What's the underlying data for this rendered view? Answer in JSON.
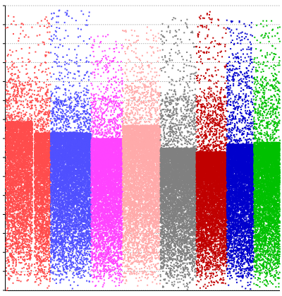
{
  "chart_data": {
    "type": "scatter",
    "title": "",
    "xlabel": "",
    "ylabel": "",
    "grid": "horizontal-dotted",
    "legend": "none",
    "ylim": [
      0,
      15
    ],
    "gridlines_y": [
      0,
      1,
      2,
      3,
      4,
      5,
      6,
      7,
      8,
      9,
      10,
      11,
      12,
      13,
      14,
      15
    ],
    "series": [
      {
        "color": "#ff4d4d",
        "x_range": [
          0.0,
          0.3
        ],
        "dense_top": 8.9,
        "cluster_top": 10.9,
        "sparse_top": 14.5,
        "dense_count": 4500,
        "cluster_count": 500,
        "sparse_count": 90
      },
      {
        "color": "#ff4d4d",
        "x_range": [
          0.32,
          0.5
        ],
        "dense_top": 8.3,
        "cluster_top": 10.6,
        "sparse_top": 14.4,
        "dense_count": 3000,
        "cluster_count": 350,
        "sparse_count": 60
      },
      {
        "color": "#5050ff",
        "x_range": [
          0.5,
          0.95
        ],
        "dense_top": 8.3,
        "cluster_top": 10.1,
        "sparse_top": 14.8,
        "dense_count": 7800,
        "cluster_count": 900,
        "sparse_count": 190
      },
      {
        "color": "#ff44ff",
        "x_range": [
          0.95,
          1.3
        ],
        "dense_top": 8.0,
        "cluster_top": 10.2,
        "sparse_top": 13.5,
        "dense_count": 6500,
        "cluster_count": 800,
        "sparse_count": 150
      },
      {
        "color": "#ffaaaa",
        "x_range": [
          1.3,
          1.72
        ],
        "dense_top": 8.7,
        "cluster_top": 10.7,
        "sparse_top": 13.9,
        "dense_count": 6800,
        "cluster_count": 800,
        "sparse_count": 160
      },
      {
        "color": "#808080",
        "x_range": [
          1.72,
          2.12
        ],
        "dense_top": 7.5,
        "cluster_top": 10.1,
        "sparse_top": 14.4,
        "dense_count": 6500,
        "cluster_count": 850,
        "sparse_count": 170
      },
      {
        "color": "#c00000",
        "x_range": [
          2.12,
          2.46
        ],
        "dense_top": 7.3,
        "cluster_top": 10.1,
        "sparse_top": 14.7,
        "dense_count": 6500,
        "cluster_count": 900,
        "sparse_count": 180
      },
      {
        "color": "#0000cc",
        "x_range": [
          2.46,
          2.76
        ],
        "dense_top": 7.7,
        "cluster_top": 11.3,
        "sparse_top": 14.3,
        "dense_count": 5800,
        "cluster_count": 650,
        "sparse_count": 140
      },
      {
        "color": "#00c000",
        "x_range": [
          2.76,
          3.05
        ],
        "dense_top": 7.8,
        "cluster_top": 10.8,
        "sparse_top": 14.2,
        "dense_count": 5400,
        "cluster_count": 650,
        "sparse_count": 140
      }
    ]
  }
}
